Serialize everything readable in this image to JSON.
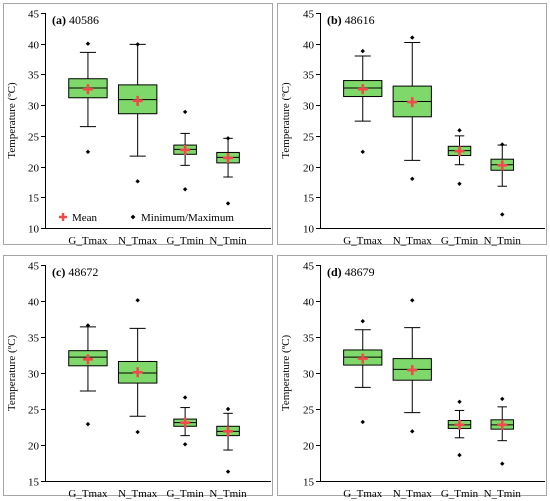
{
  "chart_data": [
    {
      "type": "box",
      "panel_label": "(a)",
      "station": "40586",
      "ylabel": "Temperature (ºC)",
      "ylim": [
        10,
        45
      ],
      "yticks": [
        10,
        15,
        20,
        25,
        30,
        35,
        40,
        45
      ],
      "categories": [
        "G_Tmax",
        "N_Tmax",
        "G_Tmin",
        "N_Tmin"
      ],
      "boxes": [
        {
          "category": "G_Tmax",
          "min": 22.4,
          "whisker_low": 26.5,
          "q1": 31.2,
          "median": 32.8,
          "q3": 34.3,
          "whisker_high": 38.6,
          "max": 40.0,
          "mean": 32.6
        },
        {
          "category": "N_Tmax",
          "min": 17.6,
          "whisker_low": 21.7,
          "q1": 28.6,
          "median": 30.9,
          "q3": 33.3,
          "whisker_high": 39.9,
          "max": 39.9,
          "mean": 30.7
        },
        {
          "category": "G_Tmin",
          "min": 16.3,
          "whisker_low": 20.2,
          "q1": 22.0,
          "median": 22.8,
          "q3": 23.5,
          "whisker_high": 25.4,
          "max": 28.9,
          "mean": 22.7
        },
        {
          "category": "N_Tmin",
          "min": 14.0,
          "whisker_low": 18.3,
          "q1": 20.6,
          "median": 21.5,
          "q3": 22.3,
          "whisker_high": 24.6,
          "max": 24.6,
          "mean": 21.4
        }
      ],
      "legend": {
        "mean": "Mean",
        "minmax": "Minimum/Maximum"
      }
    },
    {
      "type": "box",
      "panel_label": "(b)",
      "station": "48616",
      "ylabel": "Temperature (ºC)",
      "ylim": [
        10,
        45
      ],
      "yticks": [
        10,
        15,
        20,
        25,
        30,
        35,
        40,
        45
      ],
      "categories": [
        "G_Tmax",
        "N_Tmax",
        "G_Tmin",
        "N_Tmin"
      ],
      "boxes": [
        {
          "category": "G_Tmax",
          "min": 22.4,
          "whisker_low": 27.4,
          "q1": 31.4,
          "median": 32.8,
          "q3": 34.0,
          "whisker_high": 38.0,
          "max": 38.8,
          "mean": 32.6
        },
        {
          "category": "N_Tmax",
          "min": 18.0,
          "whisker_low": 21.0,
          "q1": 28.1,
          "median": 30.6,
          "q3": 33.1,
          "whisker_high": 40.2,
          "max": 41.0,
          "mean": 30.5
        },
        {
          "category": "G_Tmin",
          "min": 17.2,
          "whisker_low": 20.3,
          "q1": 21.8,
          "median": 22.6,
          "q3": 23.3,
          "whisker_high": 25.0,
          "max": 25.9,
          "mean": 22.5
        },
        {
          "category": "N_Tmin",
          "min": 12.2,
          "whisker_low": 16.8,
          "q1": 19.4,
          "median": 20.3,
          "q3": 21.2,
          "whisker_high": 23.5,
          "max": 23.6,
          "mean": 20.2
        }
      ],
      "legend": null
    },
    {
      "type": "box",
      "panel_label": "(c)",
      "station": "48672",
      "ylabel": "Temperature (ºC)",
      "ylim": [
        15,
        45
      ],
      "yticks": [
        15,
        20,
        25,
        30,
        35,
        40,
        45
      ],
      "categories": [
        "G_Tmax",
        "N_Tmax",
        "G_Tmin",
        "N_Tmin"
      ],
      "boxes": [
        {
          "category": "G_Tmax",
          "min": 22.9,
          "whisker_low": 27.5,
          "q1": 31.0,
          "median": 32.2,
          "q3": 33.1,
          "whisker_high": 36.4,
          "max": 36.6,
          "mean": 31.9
        },
        {
          "category": "N_Tmax",
          "min": 21.8,
          "whisker_low": 24.0,
          "q1": 28.6,
          "median": 30.0,
          "q3": 31.6,
          "whisker_high": 36.2,
          "max": 40.1,
          "mean": 30.1
        },
        {
          "category": "G_Tmin",
          "min": 20.1,
          "whisker_low": 21.3,
          "q1": 22.6,
          "median": 23.1,
          "q3": 23.6,
          "whisker_high": 25.2,
          "max": 26.6,
          "mean": 23.1
        },
        {
          "category": "N_Tmin",
          "min": 16.3,
          "whisker_low": 19.3,
          "q1": 21.3,
          "median": 21.9,
          "q3": 22.6,
          "whisker_high": 24.4,
          "max": 25.0,
          "mean": 21.9
        }
      ],
      "legend": null
    },
    {
      "type": "box",
      "panel_label": "(d)",
      "station": "48679",
      "ylabel": "Temperature (ºC)",
      "ylim": [
        15,
        45
      ],
      "yticks": [
        15,
        20,
        25,
        30,
        35,
        40,
        45
      ],
      "categories": [
        "G_Tmax",
        "N_Tmax",
        "G_Tmin",
        "N_Tmin"
      ],
      "boxes": [
        {
          "category": "G_Tmax",
          "min": 23.2,
          "whisker_low": 28.0,
          "q1": 31.1,
          "median": 32.2,
          "q3": 33.2,
          "whisker_high": 36.0,
          "max": 37.2,
          "mean": 32.0
        },
        {
          "category": "N_Tmax",
          "min": 21.9,
          "whisker_low": 24.5,
          "q1": 29.0,
          "median": 30.5,
          "q3": 32.0,
          "whisker_high": 36.3,
          "max": 40.1,
          "mean": 30.4
        },
        {
          "category": "G_Tmin",
          "min": 18.6,
          "whisker_low": 21.0,
          "q1": 22.3,
          "median": 22.8,
          "q3": 23.4,
          "whisker_high": 24.8,
          "max": 26.0,
          "mean": 22.8
        },
        {
          "category": "N_Tmin",
          "min": 17.4,
          "whisker_low": 20.6,
          "q1": 22.2,
          "median": 22.8,
          "q3": 23.5,
          "whisker_high": 25.3,
          "max": 26.4,
          "mean": 22.8
        }
      ],
      "legend": null
    }
  ],
  "colors": {
    "box_fill": "#7fd96a",
    "mean_marker": "#f24a4a",
    "minmax_marker": "#000000",
    "frame": "#a6a6a6"
  }
}
